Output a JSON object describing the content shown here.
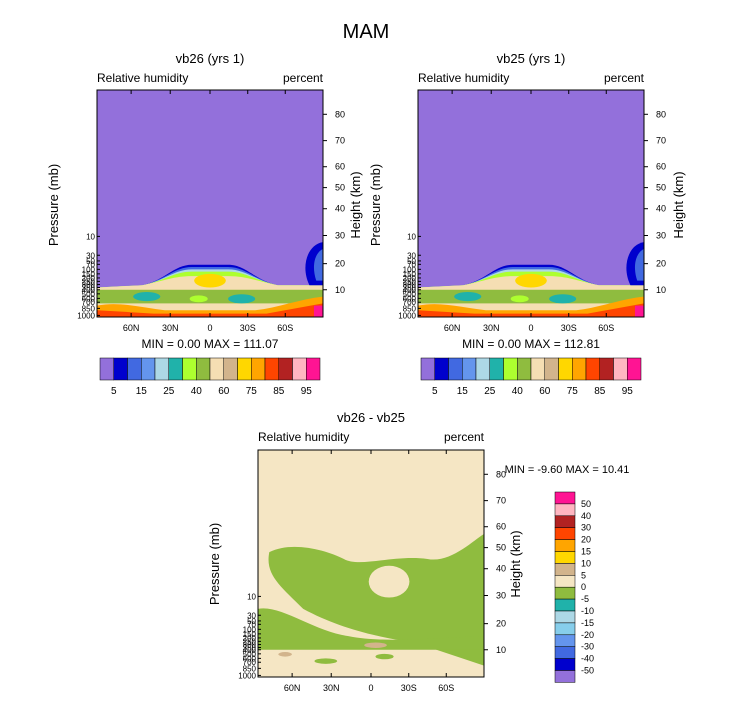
{
  "main_title": "MAM",
  "colors": {
    "contour_levels": [
      "#9370DB",
      "#0000CD",
      "#4169E1",
      "#6495ED",
      "#ADD8E6",
      "#20B2AA",
      "#ADFF2F",
      "#8FBC3F",
      "#F5DEB3",
      "#D2B48C",
      "#FFD700",
      "#FFA500",
      "#FF4500",
      "#B22222",
      "#FFB6C1",
      "#FF1493"
    ],
    "diff_levels": [
      "#9370DB",
      "#0000CD",
      "#4169E1",
      "#6495ED",
      "#87CEEB",
      "#ADD8E6",
      "#20B2AA",
      "#8FBC3F",
      "#F5E6C4",
      "#D2B48C",
      "#FFD700",
      "#FFA500",
      "#FF4500",
      "#B22222",
      "#FFB6C1",
      "#FF1493"
    ]
  },
  "chart_data": [
    {
      "type": "heatmap",
      "title": "vb26 (yrs 1)",
      "left_header": "Relative humidity",
      "right_header": "percent",
      "ylabel": "Pressure (mb)",
      "y2label": "Height (km)",
      "x_ticks": [
        "60N",
        "30N",
        "0",
        "30S",
        "60S"
      ],
      "y_ticks": [
        "10",
        "30",
        "50",
        "70",
        "100",
        "150",
        "200",
        "250",
        "300",
        "350",
        "400",
        "500",
        "600",
        "700",
        "850",
        "1000"
      ],
      "y2_ticks": [
        "80",
        "70",
        "60",
        "50",
        "40",
        "30",
        "20",
        "10"
      ],
      "stats": "MIN =   0.00   MAX = 111.07",
      "colorbar_labels": [
        "5",
        "15",
        "25",
        "40",
        "60",
        "75",
        "85",
        "95"
      ]
    },
    {
      "type": "heatmap",
      "title": "vb25 (yrs 1)",
      "left_header": "Relative humidity",
      "right_header": "percent",
      "ylabel": "Pressure (mb)",
      "y2label": "Height (km)",
      "x_ticks": [
        "60N",
        "30N",
        "0",
        "30S",
        "60S"
      ],
      "y_ticks": [
        "10",
        "30",
        "50",
        "70",
        "100",
        "150",
        "200",
        "250",
        "300",
        "350",
        "400",
        "500",
        "600",
        "700",
        "850",
        "1000"
      ],
      "y2_ticks": [
        "80",
        "70",
        "60",
        "50",
        "40",
        "30",
        "20",
        "10"
      ],
      "stats": "MIN =   0.00   MAX = 112.81",
      "colorbar_labels": [
        "5",
        "15",
        "25",
        "40",
        "60",
        "75",
        "85",
        "95"
      ]
    },
    {
      "type": "heatmap",
      "title": "vb26 - vb25",
      "left_header": "Relative humidity",
      "right_header": "percent",
      "ylabel": "Pressure (mb)",
      "y2label": "Height (km)",
      "x_ticks": [
        "60N",
        "30N",
        "0",
        "30S",
        "60S"
      ],
      "y_ticks": [
        "10",
        "30",
        "50",
        "70",
        "100",
        "150",
        "200",
        "250",
        "300",
        "350",
        "400",
        "500",
        "600",
        "700",
        "850",
        "1000"
      ],
      "y2_ticks": [
        "80",
        "70",
        "60",
        "50",
        "40",
        "30",
        "20",
        "10"
      ],
      "stats": "MIN =  -9.60   MAX =  10.41",
      "colorbar_labels": [
        "50",
        "40",
        "30",
        "20",
        "15",
        "10",
        "5",
        "0",
        "-5",
        "-10",
        "-15",
        "-20",
        "-30",
        "-40",
        "-50"
      ]
    }
  ]
}
